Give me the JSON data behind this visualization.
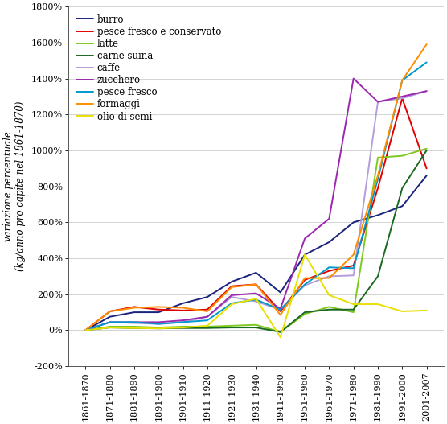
{
  "x_labels": [
    "1861-1870",
    "1871-1880",
    "1881-1890",
    "1891-1900",
    "1901-1910",
    "1911-1920",
    "1921-1930",
    "1931-1940",
    "1941-1950",
    "1951-1960",
    "1961-1970",
    "1971-1980",
    "1981-1990",
    "1991-2000",
    "2001-2007"
  ],
  "x_positions": [
    0,
    1,
    2,
    3,
    4,
    5,
    6,
    7,
    8,
    9,
    10,
    11,
    12,
    13,
    14
  ],
  "series": [
    {
      "name": "burro",
      "color": "#1a237e",
      "values": [
        0,
        75,
        100,
        100,
        150,
        185,
        270,
        320,
        210,
        420,
        490,
        600,
        640,
        690,
        860
      ]
    },
    {
      "name": "pesce fresco e conservato",
      "color": "#e00000",
      "values": [
        0,
        105,
        130,
        115,
        110,
        115,
        245,
        255,
        105,
        280,
        330,
        360,
        790,
        1290,
        900
      ]
    },
    {
      "name": "latte",
      "color": "#7ec820",
      "values": [
        0,
        20,
        20,
        15,
        20,
        20,
        25,
        30,
        -10,
        90,
        130,
        100,
        960,
        970,
        1010
      ]
    },
    {
      "name": "carne suina",
      "color": "#1b6820",
      "values": [
        0,
        15,
        12,
        10,
        12,
        12,
        15,
        15,
        -10,
        100,
        115,
        115,
        300,
        790,
        1000
      ]
    },
    {
      "name": "caffe",
      "color": "#b39ddb",
      "values": [
        0,
        45,
        40,
        35,
        45,
        75,
        185,
        160,
        115,
        250,
        300,
        305,
        1270,
        1290,
        1330
      ]
    },
    {
      "name": "zucchero",
      "color": "#9c27b0",
      "values": [
        0,
        45,
        45,
        45,
        55,
        75,
        195,
        205,
        120,
        510,
        620,
        1400,
        1270,
        1300,
        1330
      ]
    },
    {
      "name": "pesce fresco",
      "color": "#0099cc",
      "values": [
        0,
        45,
        45,
        35,
        45,
        55,
        150,
        170,
        115,
        255,
        350,
        345,
        840,
        1390,
        1490
      ]
    },
    {
      "name": "formaggi",
      "color": "#ff8c00",
      "values": [
        0,
        105,
        125,
        130,
        125,
        105,
        240,
        255,
        85,
        290,
        290,
        420,
        860,
        1390,
        1590
      ]
    },
    {
      "name": "olio di semi",
      "color": "#e8e000",
      "values": [
        0,
        15,
        12,
        10,
        15,
        25,
        145,
        175,
        -40,
        420,
        195,
        145,
        145,
        105,
        110
      ]
    }
  ],
  "ylabel_normal": "variazione percentuale",
  "ylabel_italic_pre": "(kg/anno ",
  "ylabel_italic": "pro capite",
  "ylabel_italic_post": " nel 1861-1870)",
  "ylim": [
    -200,
    1800
  ],
  "yticks": [
    -200,
    0,
    200,
    400,
    600,
    800,
    1000,
    1200,
    1400,
    1600,
    1800
  ],
  "bg_color": "#ffffff",
  "grid_color": "#cccccc",
  "legend_fontsize": 8.5,
  "tick_fontsize": 8.0,
  "ylabel_fontsize": 8.5
}
